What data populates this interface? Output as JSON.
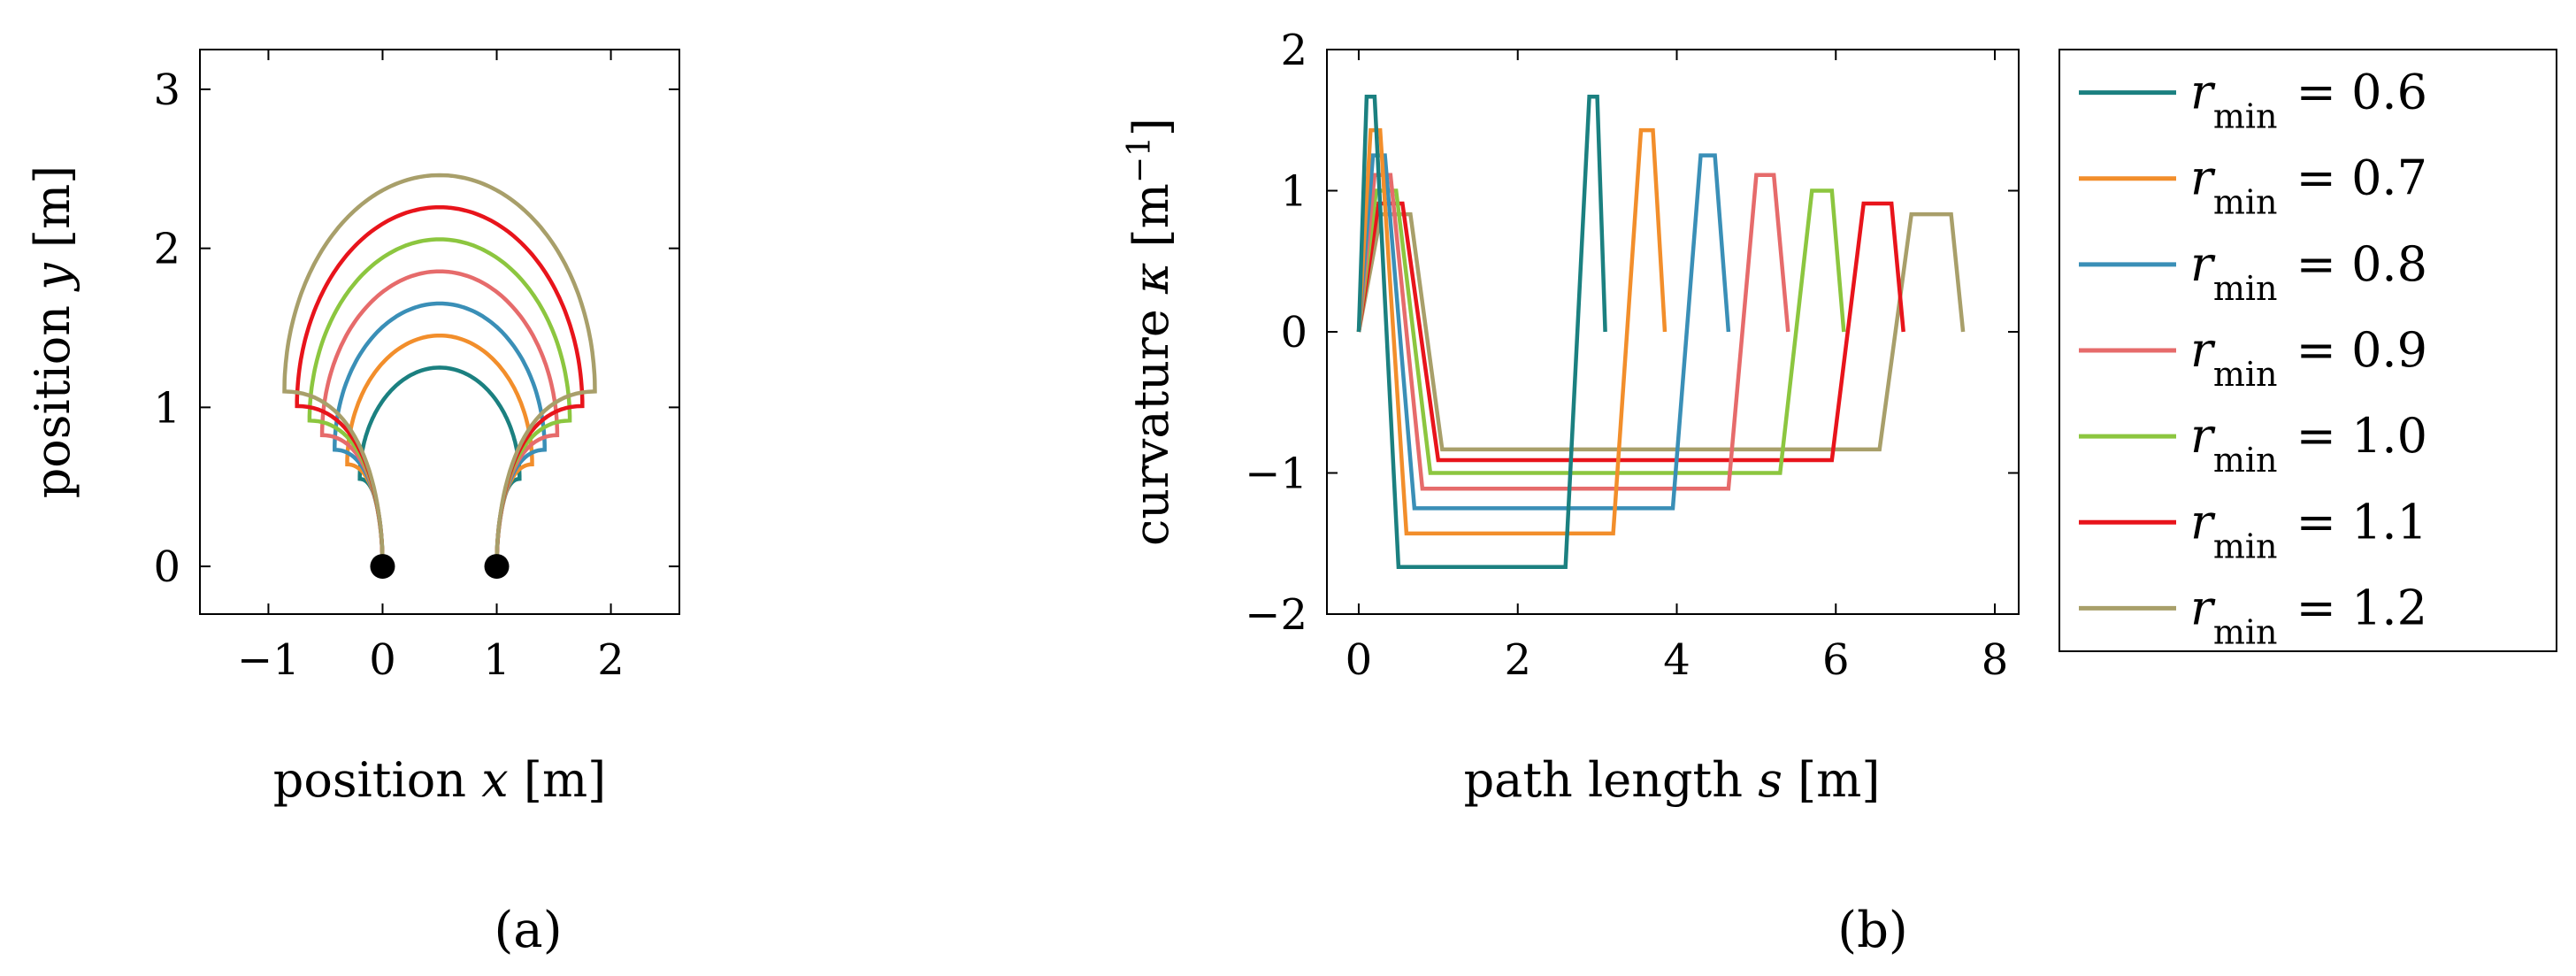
{
  "chart_data": [
    {
      "type": "line",
      "panel_label": "(a)",
      "xlabel_prefix": "position ",
      "xlabel_var": "x",
      "xlabel_unit": " [m]",
      "ylabel_prefix": "position ",
      "ylabel_var": "y",
      "ylabel_unit": " [m]",
      "xlim": [
        -1.6,
        2.6
      ],
      "ylim": [
        -0.3,
        3.25
      ],
      "xticks": [
        -1,
        0,
        1,
        2
      ],
      "xtick_labels": [
        "−1",
        "0",
        "1",
        "2"
      ],
      "yticks": [
        0,
        1,
        2,
        3
      ],
      "ytick_labels": [
        "0",
        "1",
        "2",
        "3"
      ],
      "start_points": [
        {
          "x": 0,
          "y": 0
        },
        {
          "x": 1,
          "y": 0
        }
      ],
      "series": [
        {
          "name": "r_min = 0.6",
          "r_min": 0.6,
          "color": "#1b8080"
        },
        {
          "name": "r_min = 0.7",
          "r_min": 0.7,
          "color": "#f28e2b"
        },
        {
          "name": "r_min = 0.8",
          "r_min": 0.8,
          "color": "#3a8fb7"
        },
        {
          "name": "r_min = 0.9",
          "r_min": 0.9,
          "color": "#e66b6b"
        },
        {
          "name": "r_min = 1.0",
          "r_min": 1.0,
          "color": "#8cc63f"
        },
        {
          "name": "r_min = 1.1",
          "r_min": 1.1,
          "color": "#e8141b"
        },
        {
          "name": "r_min = 1.2",
          "r_min": 1.2,
          "color": "#a89f6a"
        }
      ]
    },
    {
      "type": "line",
      "panel_label": "(b)",
      "xlabel_prefix": "path length ",
      "xlabel_var": "s",
      "xlabel_unit": " [m]",
      "ylabel_prefix": "curvature ",
      "ylabel_var": "κ",
      "ylabel_unit_pre": " [m",
      "ylabel_unit_sup": "−1",
      "ylabel_unit_post": "]",
      "xlim": [
        -0.4,
        8.3
      ],
      "ylim": [
        -2.0,
        2.0
      ],
      "xticks": [
        0,
        2,
        4,
        6,
        8
      ],
      "xtick_labels": [
        "0",
        "2",
        "4",
        "6",
        "8"
      ],
      "yticks": [
        -2,
        -1,
        0,
        1,
        2
      ],
      "ytick_labels": [
        "−2",
        "−1",
        "0",
        "1",
        "2"
      ],
      "series": [
        {
          "name": "r_min = 0.6",
          "r_min": 0.6,
          "color": "#1b8080",
          "points": [
            [
              0,
              0
            ],
            [
              0.1,
              1.6667
            ],
            [
              0.2,
              1.6667
            ],
            [
              0.5,
              -1.6667
            ],
            [
              2.6,
              -1.6667
            ],
            [
              2.9,
              1.6667
            ],
            [
              3.0,
              1.6667
            ],
            [
              3.1,
              0
            ]
          ]
        },
        {
          "name": "r_min = 0.7",
          "r_min": 0.7,
          "color": "#f28e2b",
          "points": [
            [
              0,
              0
            ],
            [
              0.15,
              1.4286
            ],
            [
              0.27,
              1.4286
            ],
            [
              0.6,
              -1.4286
            ],
            [
              3.2,
              -1.4286
            ],
            [
              3.55,
              1.4286
            ],
            [
              3.7,
              1.4286
            ],
            [
              3.85,
              0
            ]
          ]
        },
        {
          "name": "r_min = 0.8",
          "r_min": 0.8,
          "color": "#3a8fb7",
          "points": [
            [
              0,
              0
            ],
            [
              0.18,
              1.25
            ],
            [
              0.33,
              1.25
            ],
            [
              0.7,
              -1.25
            ],
            [
              3.95,
              -1.25
            ],
            [
              4.3,
              1.25
            ],
            [
              4.48,
              1.25
            ],
            [
              4.65,
              0
            ]
          ]
        },
        {
          "name": "r_min = 0.9",
          "r_min": 0.9,
          "color": "#e66b6b",
          "points": [
            [
              0,
              0
            ],
            [
              0.2,
              1.1111
            ],
            [
              0.4,
              1.1111
            ],
            [
              0.8,
              -1.1111
            ],
            [
              4.65,
              -1.1111
            ],
            [
              5.0,
              1.1111
            ],
            [
              5.22,
              1.1111
            ],
            [
              5.4,
              0
            ]
          ]
        },
        {
          "name": "r_min = 1.0",
          "r_min": 1.0,
          "color": "#8cc63f",
          "points": [
            [
              0,
              0
            ],
            [
              0.22,
              1.0
            ],
            [
              0.47,
              1.0
            ],
            [
              0.9,
              -1.0
            ],
            [
              5.3,
              -1.0
            ],
            [
              5.7,
              1.0
            ],
            [
              5.95,
              1.0
            ],
            [
              6.1,
              0
            ]
          ]
        },
        {
          "name": "r_min = 1.1",
          "r_min": 1.1,
          "color": "#e8141b",
          "points": [
            [
              0,
              0
            ],
            [
              0.25,
              0.9091
            ],
            [
              0.55,
              0.9091
            ],
            [
              1.0,
              -0.9091
            ],
            [
              5.95,
              -0.9091
            ],
            [
              6.35,
              0.9091
            ],
            [
              6.7,
              0.9091
            ],
            [
              6.85,
              0
            ]
          ]
        },
        {
          "name": "r_min = 1.2",
          "r_min": 1.2,
          "color": "#a89f6a",
          "points": [
            [
              0,
              0
            ],
            [
              0.28,
              0.8333
            ],
            [
              0.65,
              0.8333
            ],
            [
              1.05,
              -0.8333
            ],
            [
              6.55,
              -0.8333
            ],
            [
              6.95,
              0.8333
            ],
            [
              7.45,
              0.8333
            ],
            [
              7.6,
              0
            ]
          ]
        }
      ]
    }
  ],
  "legend": {
    "var": "r",
    "sub": "min",
    "entries": [
      {
        "value": "0.6",
        "color": "#1b8080"
      },
      {
        "value": "0.7",
        "color": "#f28e2b"
      },
      {
        "value": "0.8",
        "color": "#3a8fb7"
      },
      {
        "value": "0.9",
        "color": "#e66b6b"
      },
      {
        "value": "1.0",
        "color": "#8cc63f"
      },
      {
        "value": "1.1",
        "color": "#e8141b"
      },
      {
        "value": "1.2",
        "color": "#a89f6a"
      }
    ]
  }
}
